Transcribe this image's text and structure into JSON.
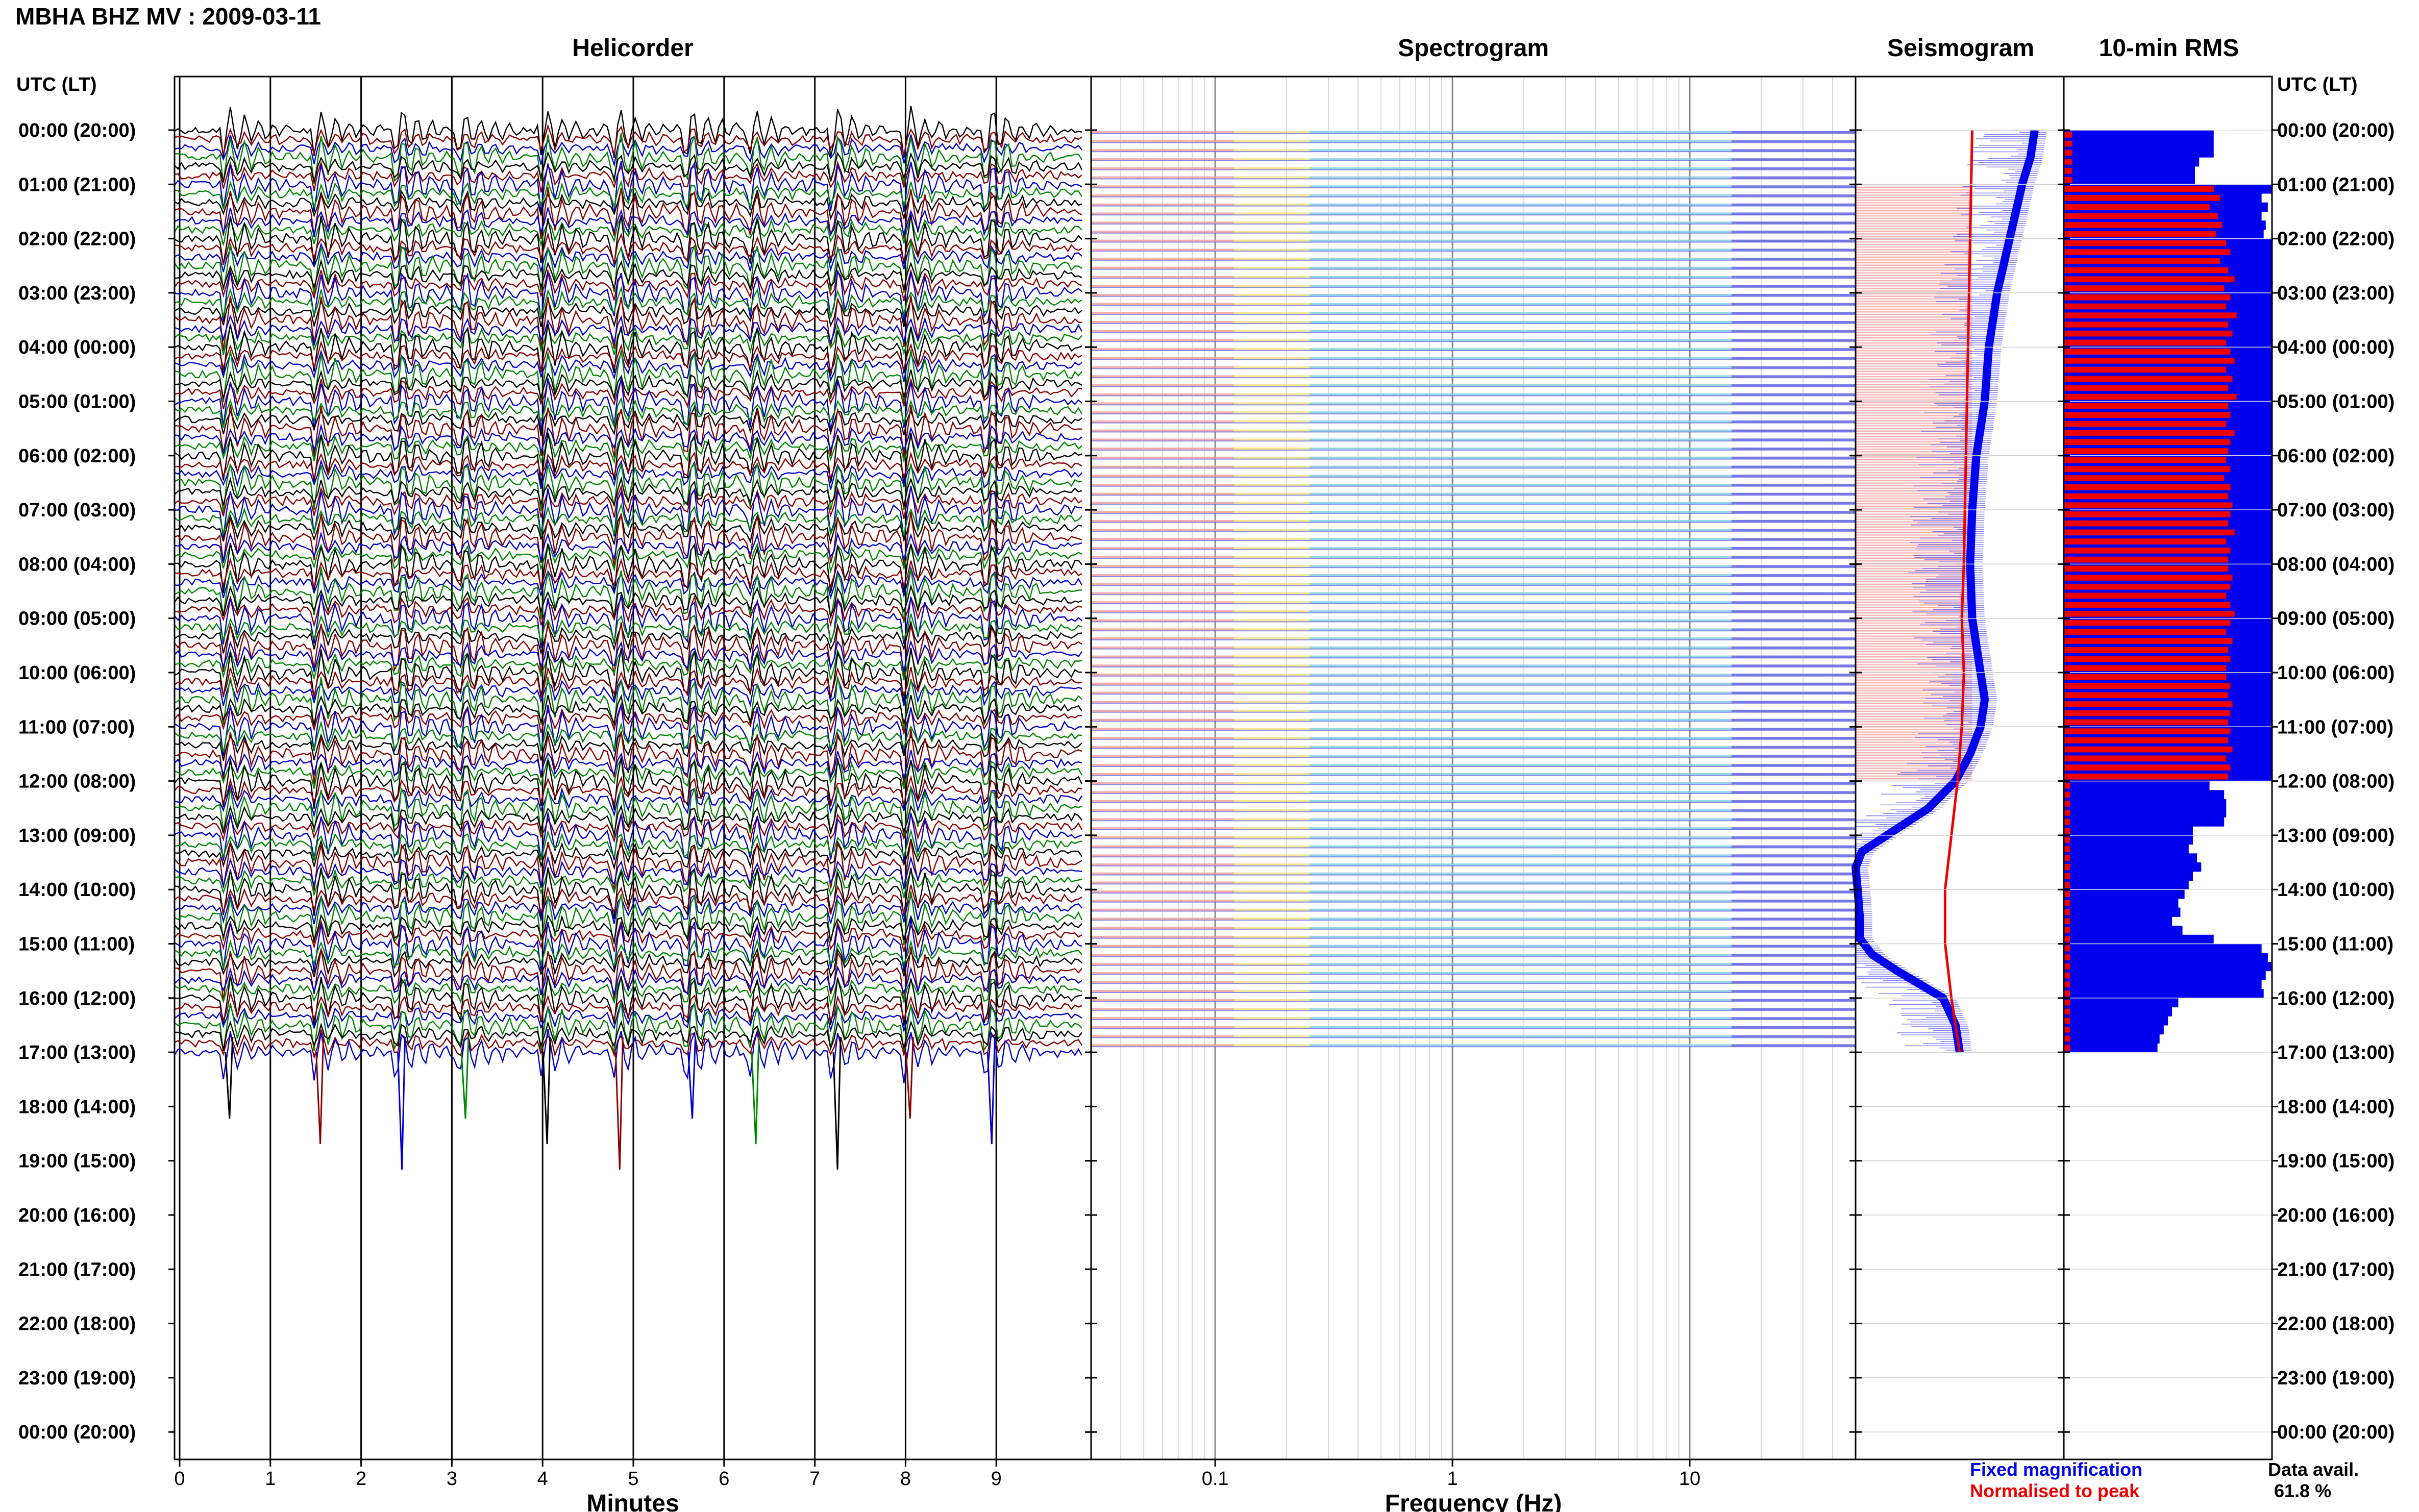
{
  "header": {
    "title": "MBHA BHZ MV : 2009-03-11"
  },
  "panels": {
    "helicorder": "Helicorder",
    "spectrogram": "Spectrogram",
    "seismogram": "Seismogram",
    "rms": "10-min RMS"
  },
  "axis_header": "UTC (LT)",
  "x_labels": {
    "helicorder": "Minutes",
    "spectrogram": "Frequency (Hz)"
  },
  "legend": {
    "fixed": "Fixed magnification",
    "normalised": "Normalised to peak"
  },
  "data_availability": {
    "label": "Data avail.",
    "value": "61.8 %"
  },
  "colors": {
    "fixed": "#0000ee",
    "normalised": "#ee0000",
    "trace_cycle": [
      "#000000",
      "#8b0000",
      "#0000cc",
      "#008800"
    ],
    "spectrogram_low": "#f2a0a0",
    "spectrogram_mid": "#f0e080",
    "spectrogram_high": "#80d0e0",
    "spectrogram_noise": "#6060e0"
  },
  "chart_data": [
    {
      "type": "line",
      "name": "helicorder",
      "title": "Helicorder",
      "xlabel": "Minutes",
      "x_ticks": [
        0,
        1,
        2,
        3,
        4,
        5,
        6,
        7,
        8,
        9
      ],
      "xlim": [
        0,
        10
      ],
      "y_ticks": [
        "00:00 (20:00)",
        "01:00 (21:00)",
        "02:00 (22:00)",
        "03:00 (23:00)",
        "04:00 (00:00)",
        "05:00 (01:00)",
        "06:00 (02:00)",
        "07:00 (03:00)",
        "08:00 (04:00)",
        "09:00 (05:00)",
        "10:00 (06:00)",
        "11:00 (07:00)",
        "12:00 (08:00)",
        "13:00 (09:00)",
        "14:00 (10:00)",
        "15:00 (11:00)",
        "16:00 (12:00)",
        "17:00 (13:00)",
        "18:00 (14:00)",
        "19:00 (15:00)",
        "20:00 (16:00)",
        "21:00 (17:00)",
        "22:00 (18:00)",
        "23:00 (19:00)",
        "00:00 (20:00)"
      ],
      "rows_per_hour": 6,
      "data_end_hour": 17,
      "event_minutes": [
        0.5,
        1.5,
        2.4,
        3.1,
        4.0,
        4.8,
        5.6,
        6.3,
        7.2,
        8.0,
        8.9
      ],
      "grid": true
    },
    {
      "type": "heatmap",
      "name": "spectrogram",
      "title": "Spectrogram",
      "xlabel": "Frequency (Hz)",
      "x_scale": "log",
      "xlim": [
        0.03,
        50
      ],
      "x_ticks": [
        0.1,
        1,
        10
      ],
      "data_end_hour": 17,
      "band_color_by_frequency": [
        [
          0.03,
          "low"
        ],
        [
          0.12,
          "mid"
        ],
        [
          0.25,
          "high"
        ],
        [
          15,
          "noise"
        ]
      ]
    },
    {
      "type": "line",
      "name": "seismogram",
      "title": "Seismogram",
      "series": [
        {
          "name": "Fixed magnification",
          "hours": [
            0.0,
            0.5,
            1.0,
            2.0,
            3.0,
            4.0,
            5.0,
            6.0,
            7.0,
            8.0,
            9.0,
            10.0,
            10.5,
            11.0,
            11.5,
            12.0,
            12.5,
            13.0,
            13.3,
            13.6,
            14.0,
            14.5,
            14.9,
            15.2,
            15.5,
            16.0,
            16.5,
            17.0
          ],
          "values": [
            0.86,
            0.84,
            0.8,
            0.74,
            0.68,
            0.64,
            0.62,
            0.58,
            0.56,
            0.55,
            0.56,
            0.6,
            0.62,
            0.6,
            0.55,
            0.48,
            0.35,
            0.15,
            0.03,
            0.0,
            0.01,
            0.02,
            0.02,
            0.08,
            0.2,
            0.42,
            0.48,
            0.5
          ]
        },
        {
          "name": "Normalised to peak",
          "hours": [
            0.0,
            2.0,
            4.0,
            6.0,
            8.0,
            9.0,
            10.0,
            11.0,
            12.0,
            13.0,
            14.0,
            15.0,
            16.0,
            17.0
          ],
          "values": [
            0.56,
            0.55,
            0.54,
            0.53,
            0.52,
            0.51,
            0.52,
            0.51,
            0.49,
            0.46,
            0.43,
            0.43,
            0.46,
            0.5
          ]
        }
      ]
    },
    {
      "type": "bar",
      "name": "10-min RMS",
      "title": "10-min RMS",
      "orientation": "horizontal",
      "interval_minutes": 10,
      "series": [
        {
          "name": "Fixed magnification",
          "hour_blocks": [
            {
              "hour": 0,
              "values": [
                0.72,
                0.72,
                0.72,
                0.65,
                0.63,
                0.63
              ]
            },
            {
              "hour": 1,
              "values": [
                1.0,
                0.95,
                0.98,
                0.95,
                0.97,
                0.96
              ]
            },
            {
              "hour": 2,
              "values": [
                1.0,
                1.0,
                1.0,
                1.0,
                1.0,
                1.0
              ]
            },
            {
              "hour": 3,
              "values": [
                1.0,
                1.0,
                1.0,
                1.0,
                1.0,
                1.0
              ]
            },
            {
              "hour": 4,
              "values": [
                1.0,
                1.0,
                1.0,
                1.0,
                1.0,
                1.0
              ]
            },
            {
              "hour": 5,
              "values": [
                1.0,
                1.0,
                1.0,
                1.0,
                1.0,
                1.0
              ]
            },
            {
              "hour": 6,
              "values": [
                1.0,
                1.0,
                1.0,
                1.0,
                1.0,
                1.0
              ]
            },
            {
              "hour": 7,
              "values": [
                1.0,
                1.0,
                1.0,
                1.0,
                1.0,
                1.0
              ]
            },
            {
              "hour": 8,
              "values": [
                1.0,
                1.0,
                1.0,
                1.0,
                1.0,
                1.0
              ]
            },
            {
              "hour": 9,
              "values": [
                1.0,
                1.0,
                1.0,
                1.0,
                1.0,
                1.0
              ]
            },
            {
              "hour": 10,
              "values": [
                1.0,
                1.0,
                1.0,
                1.0,
                1.0,
                1.0
              ]
            },
            {
              "hour": 11,
              "values": [
                1.0,
                1.0,
                1.0,
                1.0,
                1.0,
                1.0
              ]
            },
            {
              "hour": 12,
              "values": [
                0.7,
                0.77,
                0.78,
                0.78,
                0.77,
                0.62
              ]
            },
            {
              "hour": 13,
              "values": [
                0.62,
                0.6,
                0.64,
                0.66,
                0.62,
                0.6
              ]
            },
            {
              "hour": 14,
              "values": [
                0.58,
                0.55,
                0.56,
                0.52,
                0.57,
                0.72
              ]
            },
            {
              "hour": 15,
              "values": [
                0.95,
                0.98,
                1.0,
                0.97,
                0.95,
                0.96
              ]
            },
            {
              "hour": 16,
              "values": [
                0.55,
                0.52,
                0.5,
                0.48,
                0.46,
                0.45
              ]
            }
          ]
        },
        {
          "name": "Normalised to peak",
          "hour_blocks": [
            {
              "hour": 0,
              "values": [
                0.04,
                0.04,
                0.04,
                0.04,
                0.04,
                0.04
              ]
            },
            {
              "hour": 1,
              "values": [
                0.72,
                0.75,
                0.7,
                0.74,
                0.76,
                0.73
              ]
            },
            {
              "hour": 2,
              "values": [
                0.78,
                0.8,
                0.75,
                0.79,
                0.82,
                0.77
              ]
            },
            {
              "hour": 3,
              "values": [
                0.8,
                0.78,
                0.83,
                0.79,
                0.81,
                0.78
              ]
            },
            {
              "hour": 4,
              "values": [
                0.8,
                0.82,
                0.78,
                0.81,
                0.79,
                0.83
              ]
            },
            {
              "hour": 5,
              "values": [
                0.79,
                0.8,
                0.78,
                0.82,
                0.8,
                0.79
              ]
            },
            {
              "hour": 6,
              "values": [
                0.78,
                0.8,
                0.77,
                0.8,
                0.79,
                0.81
              ]
            },
            {
              "hour": 7,
              "values": [
                0.8,
                0.79,
                0.82,
                0.78,
                0.8,
                0.79
              ]
            },
            {
              "hour": 8,
              "values": [
                0.79,
                0.81,
                0.8,
                0.78,
                0.8,
                0.82
              ]
            },
            {
              "hour": 9,
              "values": [
                0.8,
                0.78,
                0.81,
                0.79,
                0.8,
                0.78
              ]
            },
            {
              "hour": 10,
              "values": [
                0.78,
                0.8,
                0.79,
                0.81,
                0.8,
                0.79
              ]
            },
            {
              "hour": 11,
              "values": [
                0.8,
                0.79,
                0.81,
                0.78,
                0.8,
                0.79
              ]
            },
            {
              "hour": 12,
              "values": [
                0.03,
                0.03,
                0.03,
                0.03,
                0.03,
                0.03
              ]
            },
            {
              "hour": 13,
              "values": [
                0.03,
                0.03,
                0.03,
                0.03,
                0.03,
                0.03
              ]
            },
            {
              "hour": 14,
              "values": [
                0.03,
                0.03,
                0.03,
                0.03,
                0.03,
                0.03
              ]
            },
            {
              "hour": 15,
              "values": [
                0.03,
                0.03,
                0.03,
                0.03,
                0.03,
                0.03
              ]
            },
            {
              "hour": 16,
              "values": [
                0.03,
                0.03,
                0.03,
                0.03,
                0.03,
                0.03
              ]
            }
          ]
        }
      ]
    }
  ]
}
